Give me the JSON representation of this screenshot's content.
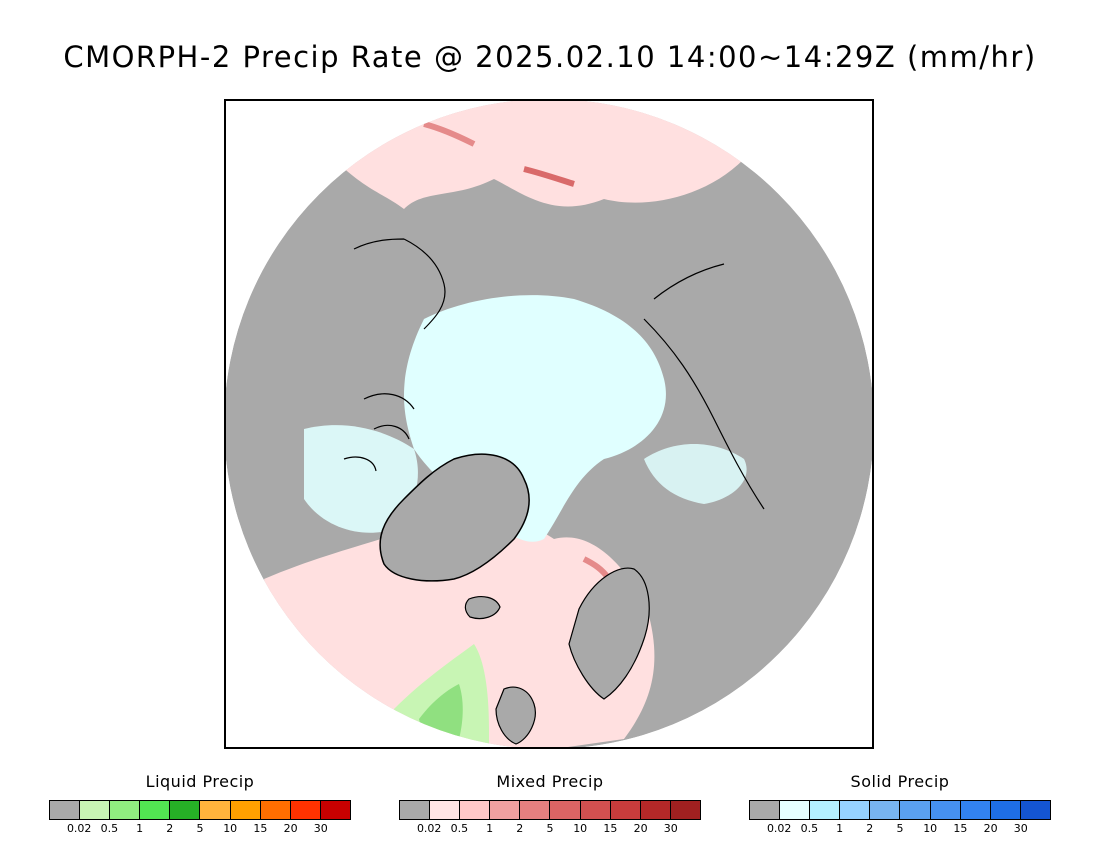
{
  "title": "CMORPH-2 Precip Rate @ 2025.02.10 14:00~14:29Z (mm/hr)",
  "map": {
    "projection": "north-polar-stereographic",
    "colors": {
      "no_precip": "#a9a9a9",
      "ocean_none": "#ffffff",
      "mixed_light": "#ffe0e0",
      "mixed_mid": "#e58a8a",
      "mixed_heavy": "#d96a6a",
      "solid_light": "#e0ffff",
      "liquid_light": "#c8f5b4",
      "liquid_mid": "#90e080",
      "coast": "#000000"
    }
  },
  "legends": [
    {
      "title": "Liquid Precip",
      "colors": [
        "#a9a9a9",
        "#c8f5b4",
        "#90ee80",
        "#52e552",
        "#26b026",
        "#ffb43c",
        "#ffa000",
        "#ff6e00",
        "#ff3200",
        "#c80000"
      ],
      "ticks": [
        "0.02",
        "0.5",
        "1",
        "2",
        "5",
        "10",
        "15",
        "20",
        "30"
      ]
    },
    {
      "title": "Mixed Precip",
      "colors": [
        "#a9a9a9",
        "#ffe4e4",
        "#ffc8c8",
        "#f0a0a0",
        "#e67f7f",
        "#dc6464",
        "#d25050",
        "#c83c3c",
        "#b42828",
        "#a02020"
      ],
      "ticks": [
        "0.02",
        "0.5",
        "1",
        "2",
        "5",
        "10",
        "15",
        "20",
        "30"
      ]
    },
    {
      "title": "Solid Precip",
      "colors": [
        "#a9a9a9",
        "#e6ffff",
        "#b4f0ff",
        "#96d2ff",
        "#78b4f0",
        "#5aa0f0",
        "#4691f0",
        "#3282f0",
        "#1e6ee6",
        "#1455d2"
      ],
      "ticks": [
        "0.02",
        "0.5",
        "1",
        "2",
        "5",
        "10",
        "15",
        "20",
        "30"
      ]
    }
  ]
}
